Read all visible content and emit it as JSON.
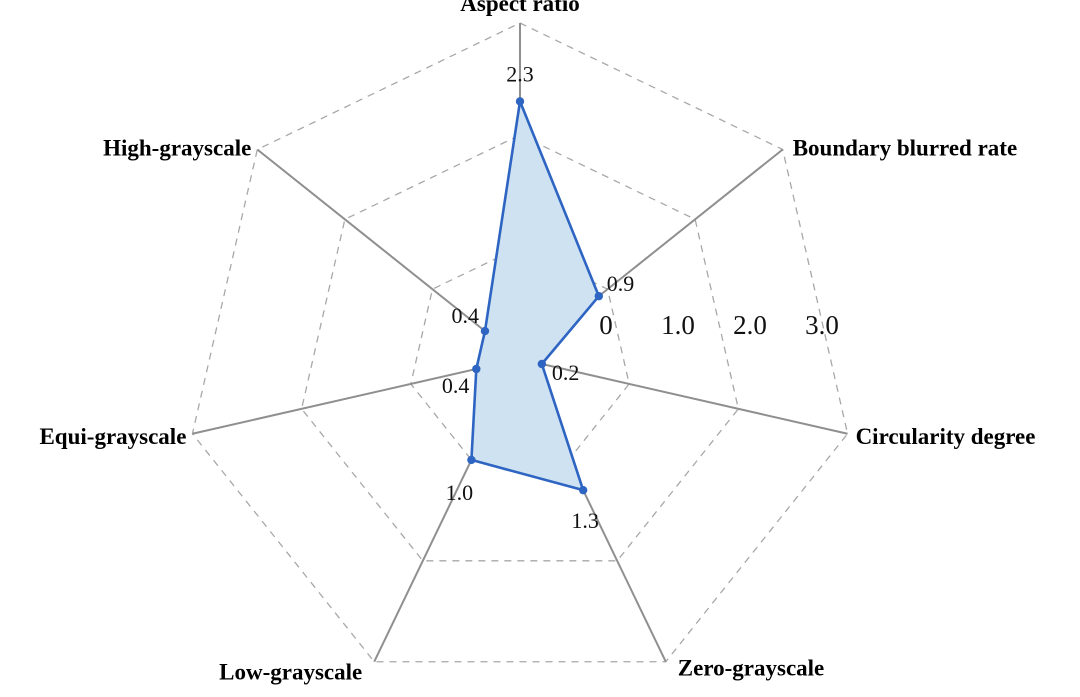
{
  "chart_data": {
    "type": "radar",
    "categories": [
      "Aspect ratio",
      "Boundary blurred rate",
      "Circularity degree",
      "Zero-grayscale",
      "Low-grayscale",
      "Equi-grayscale",
      "High-grayscale"
    ],
    "values": [
      2.3,
      0.9,
      0.2,
      1.3,
      1.0,
      0.4,
      0.4
    ],
    "value_labels": [
      "2.3",
      "0.9",
      "0.2",
      "1.3",
      "1.0",
      "0.4",
      "0.4"
    ],
    "scale_labels": [
      "0",
      "1.0",
      "2.0",
      "3.0"
    ],
    "range": [
      0,
      3
    ],
    "grid": true,
    "colors": {
      "line": "#2e64c2",
      "fill": "#cfe2f1",
      "grid": "#a8a8a8",
      "spoke": "#8f8f8f"
    }
  }
}
